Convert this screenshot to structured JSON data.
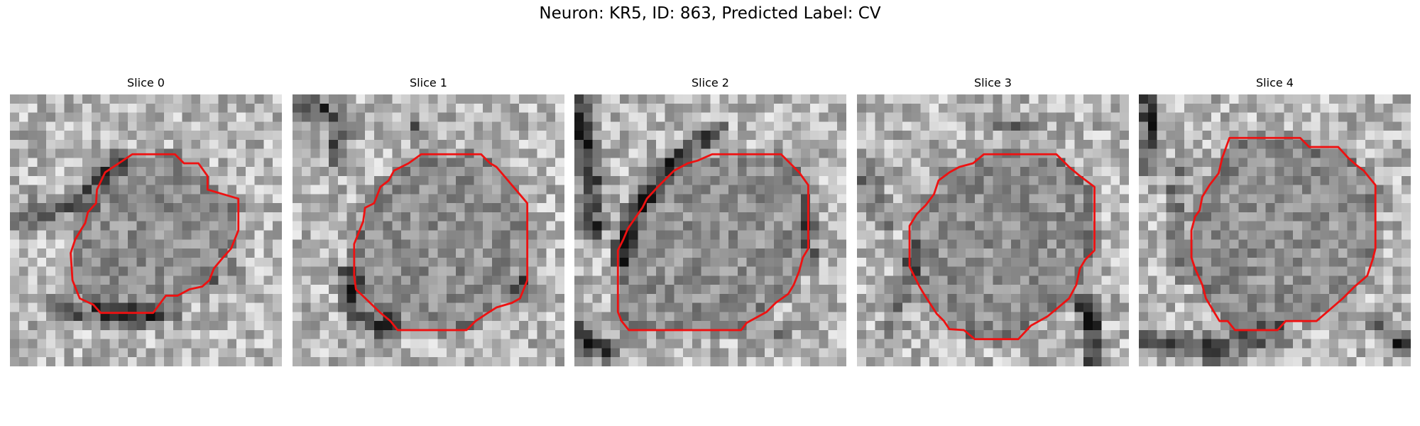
{
  "figure": {
    "title": "Neuron: KR5, ID: 863, Predicted Label: CV",
    "contour_color": "#ee1111",
    "colormap": "grayscale",
    "panels": [
      {
        "title": "Slice 0",
        "seed": 11
      },
      {
        "title": "Slice 1",
        "seed": 27
      },
      {
        "title": "Slice 2",
        "seed": 43
      },
      {
        "title": "Slice 3",
        "seed": 59
      },
      {
        "title": "Slice 4",
        "seed": 71
      }
    ]
  }
}
